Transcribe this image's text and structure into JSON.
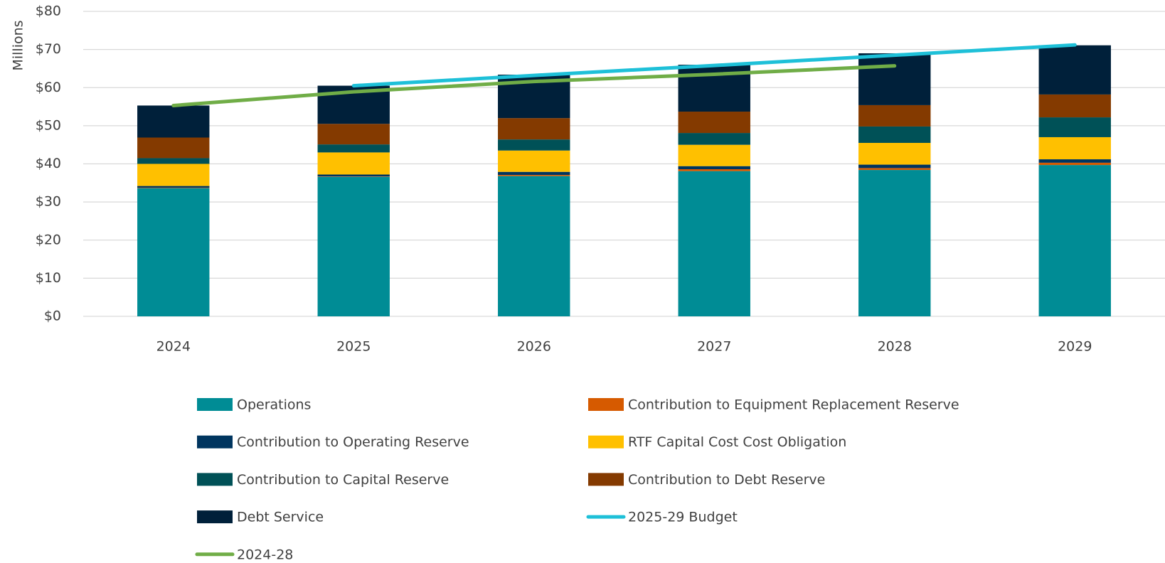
{
  "chart_data": {
    "type": "bar",
    "y_axis_label": "Millions",
    "categories": [
      "2024",
      "2025",
      "2026",
      "2027",
      "2028",
      "2029"
    ],
    "ylim": [
      0,
      80
    ],
    "yticks": [
      {
        "value": 0,
        "label": "$0"
      },
      {
        "value": 10,
        "label": "$10"
      },
      {
        "value": 20,
        "label": "$20"
      },
      {
        "value": 30,
        "label": "$30"
      },
      {
        "value": 40,
        "label": "$40"
      },
      {
        "value": 50,
        "label": "$50"
      },
      {
        "value": 60,
        "label": "$60"
      },
      {
        "value": 70,
        "label": "$70"
      },
      {
        "value": 80,
        "label": "$80"
      }
    ],
    "grid": true,
    "stacked": true,
    "series": [
      {
        "name": "Operations",
        "color": "#008c95",
        "values": [
          33.6,
          36.6,
          36.8,
          38.1,
          38.4,
          39.7
        ]
      },
      {
        "name": "Contribution to Equipment Replacement Reserve",
        "color": "#d65a00",
        "values": [
          0.1,
          0.1,
          0.3,
          0.5,
          0.5,
          0.6
        ]
      },
      {
        "name": "Contribution to Operating Reserve",
        "color": "#00355f",
        "values": [
          0.5,
          0.5,
          0.8,
          0.8,
          0.9,
          0.9
        ]
      },
      {
        "name": "RTF Capital Cost Cost Obligation",
        "color": "#ffc000",
        "values": [
          5.8,
          5.8,
          5.6,
          5.6,
          5.7,
          5.8
        ]
      },
      {
        "name": "Contribution to Capital Reserve",
        "color": "#005157",
        "values": [
          1.5,
          2.1,
          2.9,
          3.1,
          4.3,
          5.2
        ]
      },
      {
        "name": "Contribution to Debt Reserve",
        "color": "#843a00",
        "values": [
          5.4,
          5.4,
          5.6,
          5.6,
          5.6,
          6.0
        ]
      },
      {
        "name": "Debt Service",
        "color": "#00203a",
        "values": [
          8.4,
          10.0,
          11.4,
          12.3,
          13.6,
          12.9
        ]
      },
      {
        "name": "2025-29 Budget",
        "type": "line",
        "color": "#1ec0d8",
        "values": [
          null,
          60.5,
          63.2,
          65.8,
          68.5,
          71.2
        ]
      },
      {
        "name": "2024-28",
        "type": "line",
        "color": "#70ad47",
        "values": [
          55.3,
          58.9,
          61.6,
          63.5,
          65.7,
          null
        ]
      }
    ]
  }
}
